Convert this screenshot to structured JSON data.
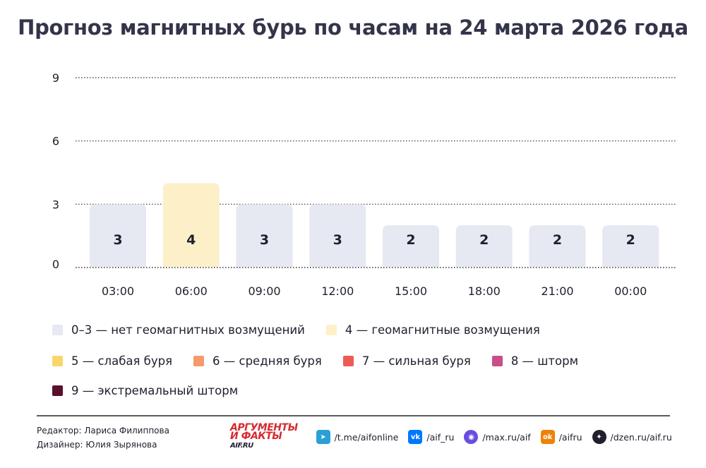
{
  "chart_data": {
    "type": "bar",
    "title": "Прогноз магнитных бурь по часам на 24 марта 2026 года",
    "categories": [
      "03:00",
      "06:00",
      "09:00",
      "12:00",
      "15:00",
      "18:00",
      "21:00",
      "00:00"
    ],
    "values": [
      3,
      4,
      3,
      3,
      2,
      2,
      2,
      2
    ],
    "ylim": [
      0,
      9
    ],
    "yticks": [
      "0",
      "3",
      "6",
      "9"
    ],
    "grid": true,
    "legend_position": "bottom",
    "legend": [
      {
        "label": "0–3 — нет геомагнитных возмущений",
        "color": "#e6e8f2"
      },
      {
        "label": "4 — геомагнитные возмущения",
        "color": "#fdf0c8"
      },
      {
        "label": "5 — слабая буря",
        "color": "#f9d66b"
      },
      {
        "label": "6 — средняя буря",
        "color": "#f69a6a"
      },
      {
        "label": "7 — сильная буря",
        "color": "#ef5a55"
      },
      {
        "label": "8 — шторм",
        "color": "#c94e8a"
      },
      {
        "label": "9 — экстремальный шторм",
        "color": "#5b0f2e"
      }
    ]
  },
  "footer": {
    "editor": "Редактор: Лариса Филиппова",
    "designer": "Дизайнер: Юлия Зырянова",
    "logo_line1": "АРГУМЕНТЫ",
    "logo_line2": "И ФАКТЫ",
    "logo_site": "AIF.RU",
    "socials": [
      {
        "icon": "telegram-icon",
        "label": "/t.me/aifonline",
        "color": "#2a9fd8"
      },
      {
        "icon": "vk-icon",
        "label": "/aif_ru",
        "color": "#0077ff"
      },
      {
        "icon": "max-icon",
        "label": "/max.ru/aif",
        "color": "#6a4de0"
      },
      {
        "icon": "ok-icon",
        "label": "/aifru",
        "color": "#ee8208"
      },
      {
        "icon": "dzen-icon",
        "label": "/dzen.ru/aif.ru",
        "color": "#1f1f2e"
      }
    ]
  }
}
